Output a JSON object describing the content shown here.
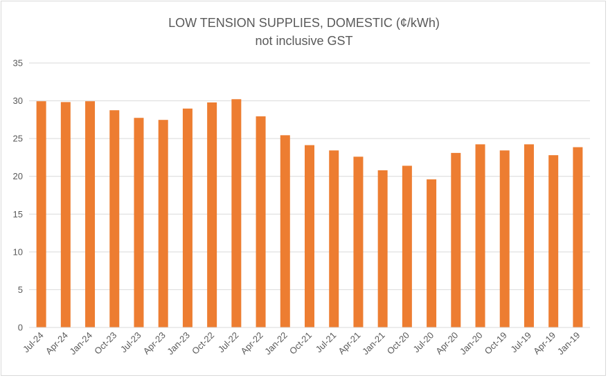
{
  "chart_data": {
    "type": "bar",
    "title": "LOW TENSION SUPPLIES, DOMESTIC (¢/kWh)",
    "subtitle": "not inclusive GST",
    "xlabel": "",
    "ylabel": "",
    "ylim": [
      0,
      35
    ],
    "yticks": [
      0,
      5,
      10,
      15,
      20,
      25,
      30,
      35
    ],
    "grid": true,
    "legend": "none",
    "bar_color": "#ED7D31",
    "categories": [
      "Jul-24",
      "Apr-24",
      "Jan-24",
      "Oct-23",
      "Jul-23",
      "Apr-23",
      "Jan-23",
      "Oct-22",
      "Jul-22",
      "Apr-22",
      "Jan-22",
      "Oct-21",
      "Jul-21",
      "Apr-21",
      "Jan-21",
      "Oct-20",
      "Jul-20",
      "Apr-20",
      "Jan-20",
      "Oct-19",
      "Jul-19",
      "Apr-19",
      "Jan-19"
    ],
    "values": [
      29.94,
      29.83,
      29.94,
      28.75,
      27.74,
      27.47,
      28.97,
      29.78,
      30.21,
      27.94,
      25.44,
      24.13,
      23.43,
      22.6,
      20.8,
      21.4,
      19.6,
      23.1,
      24.24,
      23.43,
      24.24,
      22.8,
      23.86
    ]
  }
}
